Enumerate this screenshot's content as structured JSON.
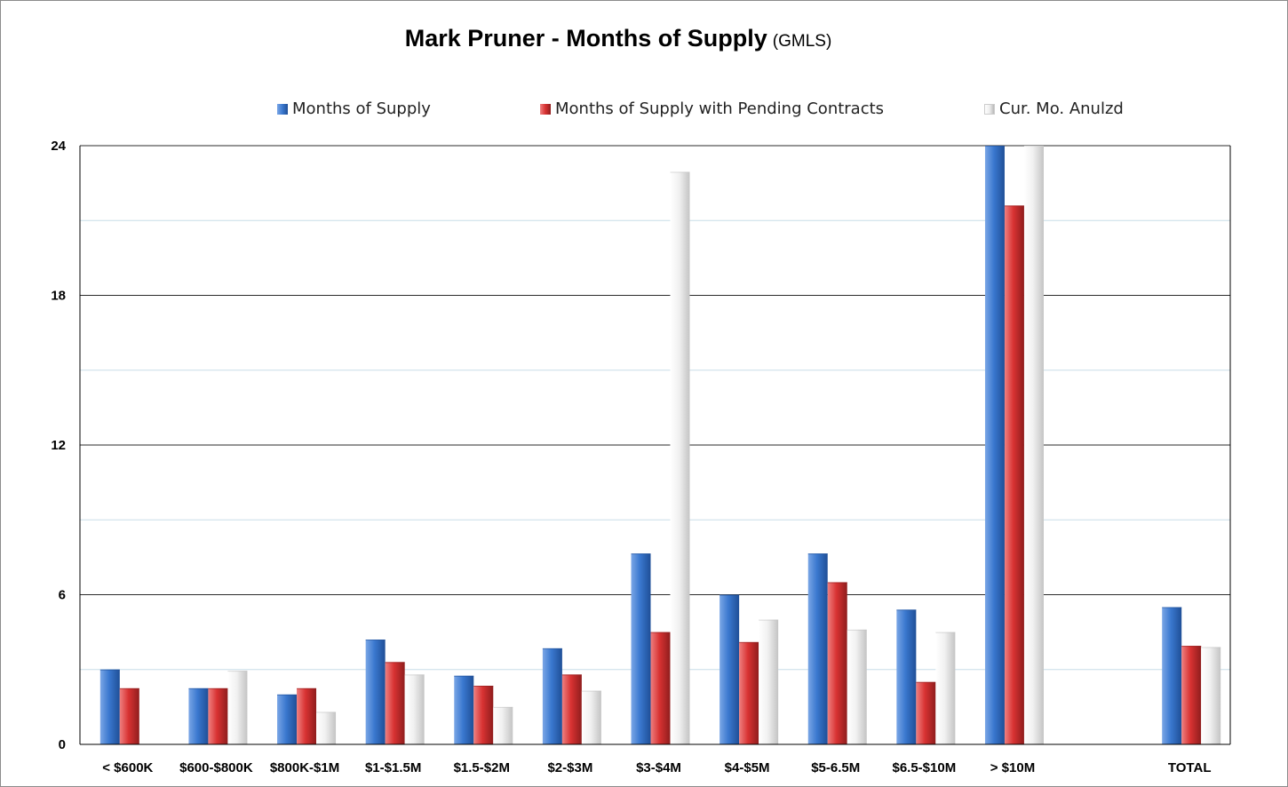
{
  "title": "Mark Pruner - Months of Supply",
  "subtitle": "(GMLS)",
  "colors": {
    "blue_light": "#7aa6e6",
    "blue": "#3a78cf",
    "blue_dark": "#1f4f97",
    "red_light": "#ef8080",
    "red": "#d83232",
    "red_dark": "#8f1d1d",
    "white_light": "#ffffff",
    "white": "#f1f1f1",
    "white_dark": "#c4c4c4",
    "gridline": "#2b2b2b",
    "minor_gridline": "#c8dde8"
  },
  "chart_data": {
    "type": "bar",
    "title": "Mark Pruner - Months of Supply",
    "subtitle": "(GMLS)",
    "categories": [
      "< $600K",
      "$600-$800K",
      "$800K-$1M",
      "$1-$1.5M",
      "$1.5-$2M",
      "$2-$3M",
      "$3-$4M",
      "$4-$5M",
      "$5-6.5M",
      "$6.5-$10M",
      "> $10M",
      "",
      "TOTAL"
    ],
    "series": [
      {
        "name": "Months of Supply",
        "color": "blue",
        "values": [
          3.0,
          2.25,
          2.0,
          4.2,
          2.75,
          3.85,
          7.65,
          6.0,
          7.65,
          5.4,
          24,
          null,
          5.5
        ]
      },
      {
        "name": "Months of Supply with Pending Contracts",
        "color": "red",
        "values": [
          2.25,
          2.25,
          2.25,
          3.3,
          2.35,
          2.8,
          4.5,
          4.1,
          6.5,
          2.5,
          21.6,
          null,
          3.95
        ]
      },
      {
        "name": "Cur. Mo. Anulzd",
        "color": "white",
        "values": [
          0,
          2.95,
          1.3,
          2.8,
          1.5,
          2.15,
          22.95,
          5.0,
          4.6,
          4.5,
          24,
          null,
          3.9
        ]
      }
    ],
    "yticks": [
      0,
      6,
      12,
      18,
      24
    ],
    "ylim": [
      0,
      24
    ],
    "legend_position": "top",
    "grid": true
  }
}
